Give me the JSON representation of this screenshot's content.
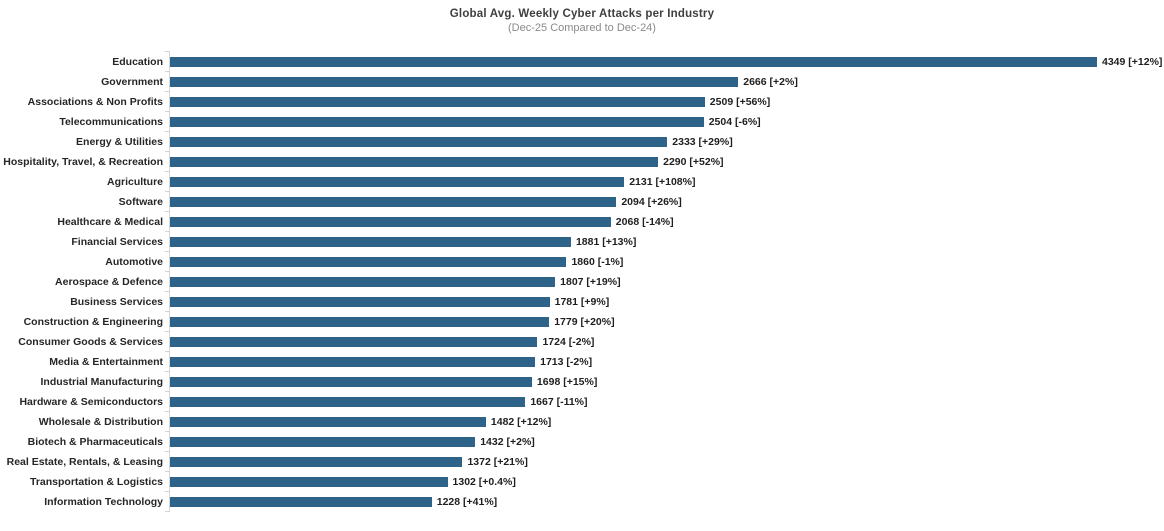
{
  "chart_data": {
    "type": "bar",
    "orientation": "horizontal",
    "title": "Global Avg. Weekly Cyber Attacks per Industry",
    "subtitle": "(Dec-25 Compared to Dec-24)",
    "xlabel": "",
    "ylabel": "",
    "xlim": [
      0,
      4600
    ],
    "grid": "off",
    "legend": "none",
    "bar_color": "#2E6389",
    "categories": [
      "Education",
      "Government",
      "Associations & Non Profits",
      "Telecommunications",
      "Energy & Utilities",
      "Hospitality, Travel, & Recreation",
      "Agriculture",
      "Software",
      "Healthcare & Medical",
      "Financial Services",
      "Automotive",
      "Aerospace & Defence",
      "Business Services",
      "Construction & Engineering",
      "Consumer Goods & Services",
      "Media & Entertainment",
      "Industrial Manufacturing",
      "Hardware & Semiconductors",
      "Wholesale & Distribution",
      "Biotech & Pharmaceuticals",
      "Real Estate, Rentals, & Leasing",
      "Transportation & Logistics",
      "Information Technology"
    ],
    "values": [
      4349,
      2666,
      2509,
      2504,
      2333,
      2290,
      2131,
      2094,
      2068,
      1881,
      1860,
      1807,
      1781,
      1779,
      1724,
      1713,
      1698,
      1667,
      1482,
      1432,
      1372,
      1302,
      1228
    ],
    "change_vs_prior": [
      "+12%",
      "+2%",
      "+56%",
      "-6%",
      "+29%",
      "+52%",
      "+108%",
      "+26%",
      "-14%",
      "+13%",
      "-1%",
      "+19%",
      "+9%",
      "+20%",
      "-2%",
      "-2%",
      "+15%",
      "-11%",
      "+12%",
      "+2%",
      "+21%",
      "+0.4%",
      "+41%"
    ],
    "data_labels": [
      "4349 [+12%]",
      "2666 [+2%]",
      "2509 [+56%]",
      "2504 [-6%]",
      "2333 [+29%]",
      "2290 [+52%]",
      "2131 [+108%]",
      "2094 [+26%]",
      "2068 [-14%]",
      "1881 [+13%]",
      "1860 [-1%]",
      "1807 [+19%]",
      "1781 [+9%]",
      "1779 [+20%]",
      "1724 [-2%]",
      "1713 [-2%]",
      "1698 [+15%]",
      "1667 [-11%]",
      "1482 [+12%]",
      "1432 [+2%]",
      "1372 [+21%]",
      "1302 [+0.4%]",
      "1228 [+41%]"
    ]
  }
}
